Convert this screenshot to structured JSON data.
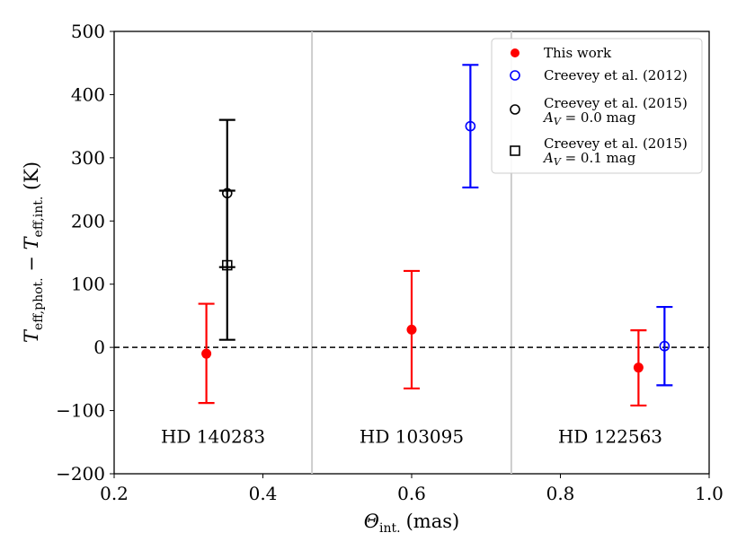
{
  "chart_data": {
    "type": "scatter",
    "x_label_main": "Θ",
    "x_label_sub": "int.",
    "x_label_unit": "(mas)",
    "y_label_main_a": "T",
    "y_label_sub_a": "eff,phot.",
    "y_label_sep": " − ",
    "y_label_main_b": "T",
    "y_label_sub_b": "eff,int.",
    "y_label_unit": " (K)",
    "xlim": [
      0.2,
      1.0
    ],
    "ylim": [
      -200,
      500
    ],
    "xticks": [
      0.2,
      0.4,
      0.6,
      0.8,
      1.0
    ],
    "xtick_labels": [
      "0.2",
      "0.4",
      "0.6",
      "0.8",
      "1.0"
    ],
    "yticks": [
      -200,
      -100,
      0,
      100,
      200,
      300,
      400,
      500
    ],
    "ytick_labels": [
      "−200",
      "−100",
      "0",
      "100",
      "200",
      "300",
      "400",
      "500"
    ],
    "zero_line": 0,
    "separators": [
      0.466,
      0.734
    ],
    "star_labels": [
      {
        "text": "HD 140283",
        "x": 0.333,
        "y": -140
      },
      {
        "text": "HD 103095",
        "x": 0.6,
        "y": -140
      },
      {
        "text": "HD 122563",
        "x": 0.867,
        "y": -140
      }
    ],
    "series": [
      {
        "name": "This work",
        "marker": "filled-circle",
        "color": "#ff0000",
        "points": [
          {
            "x": 0.324,
            "y": -10,
            "err_low": 78,
            "err_high": 79
          },
          {
            "x": 0.6,
            "y": 28,
            "err_low": 93,
            "err_high": 93
          },
          {
            "x": 0.905,
            "y": -32,
            "err_low": 60,
            "err_high": 59
          }
        ]
      },
      {
        "name": "Creevey et al. (2012)",
        "marker": "open-circle",
        "color": "#0000ff",
        "points": [
          {
            "x": 0.679,
            "y": 350,
            "err_low": 97,
            "err_high": 97
          },
          {
            "x": 0.94,
            "y": 2,
            "err_low": 62,
            "err_high": 62
          }
        ]
      },
      {
        "name": "Creevey et al. (2015)",
        "legend_sub": "A_V = 0.0 mag",
        "marker": "open-circle",
        "color": "#000000",
        "points": [
          {
            "x": 0.352,
            "y": 244,
            "err_low": 117,
            "err_high": 116
          }
        ]
      },
      {
        "name": "Creevey et al. (2015)",
        "legend_sub": "A_V = 0.1 mag",
        "marker": "open-square",
        "color": "#000000",
        "points": [
          {
            "x": 0.352,
            "y": 130,
            "err_low": 118,
            "err_high": 118
          }
        ]
      }
    ],
    "legend": {
      "location": "upper-right",
      "entries": [
        {
          "label": "This work"
        },
        {
          "label": "Creevey et al. (2012)"
        },
        {
          "label": "Creevey et al. (2015)",
          "sub_main": "A",
          "sub_sub": "V",
          "sub_rest": " = 0.0 mag"
        },
        {
          "label": "Creevey et al. (2015)",
          "sub_main": "A",
          "sub_sub": "V",
          "sub_rest": " = 0.1 mag"
        }
      ]
    }
  }
}
